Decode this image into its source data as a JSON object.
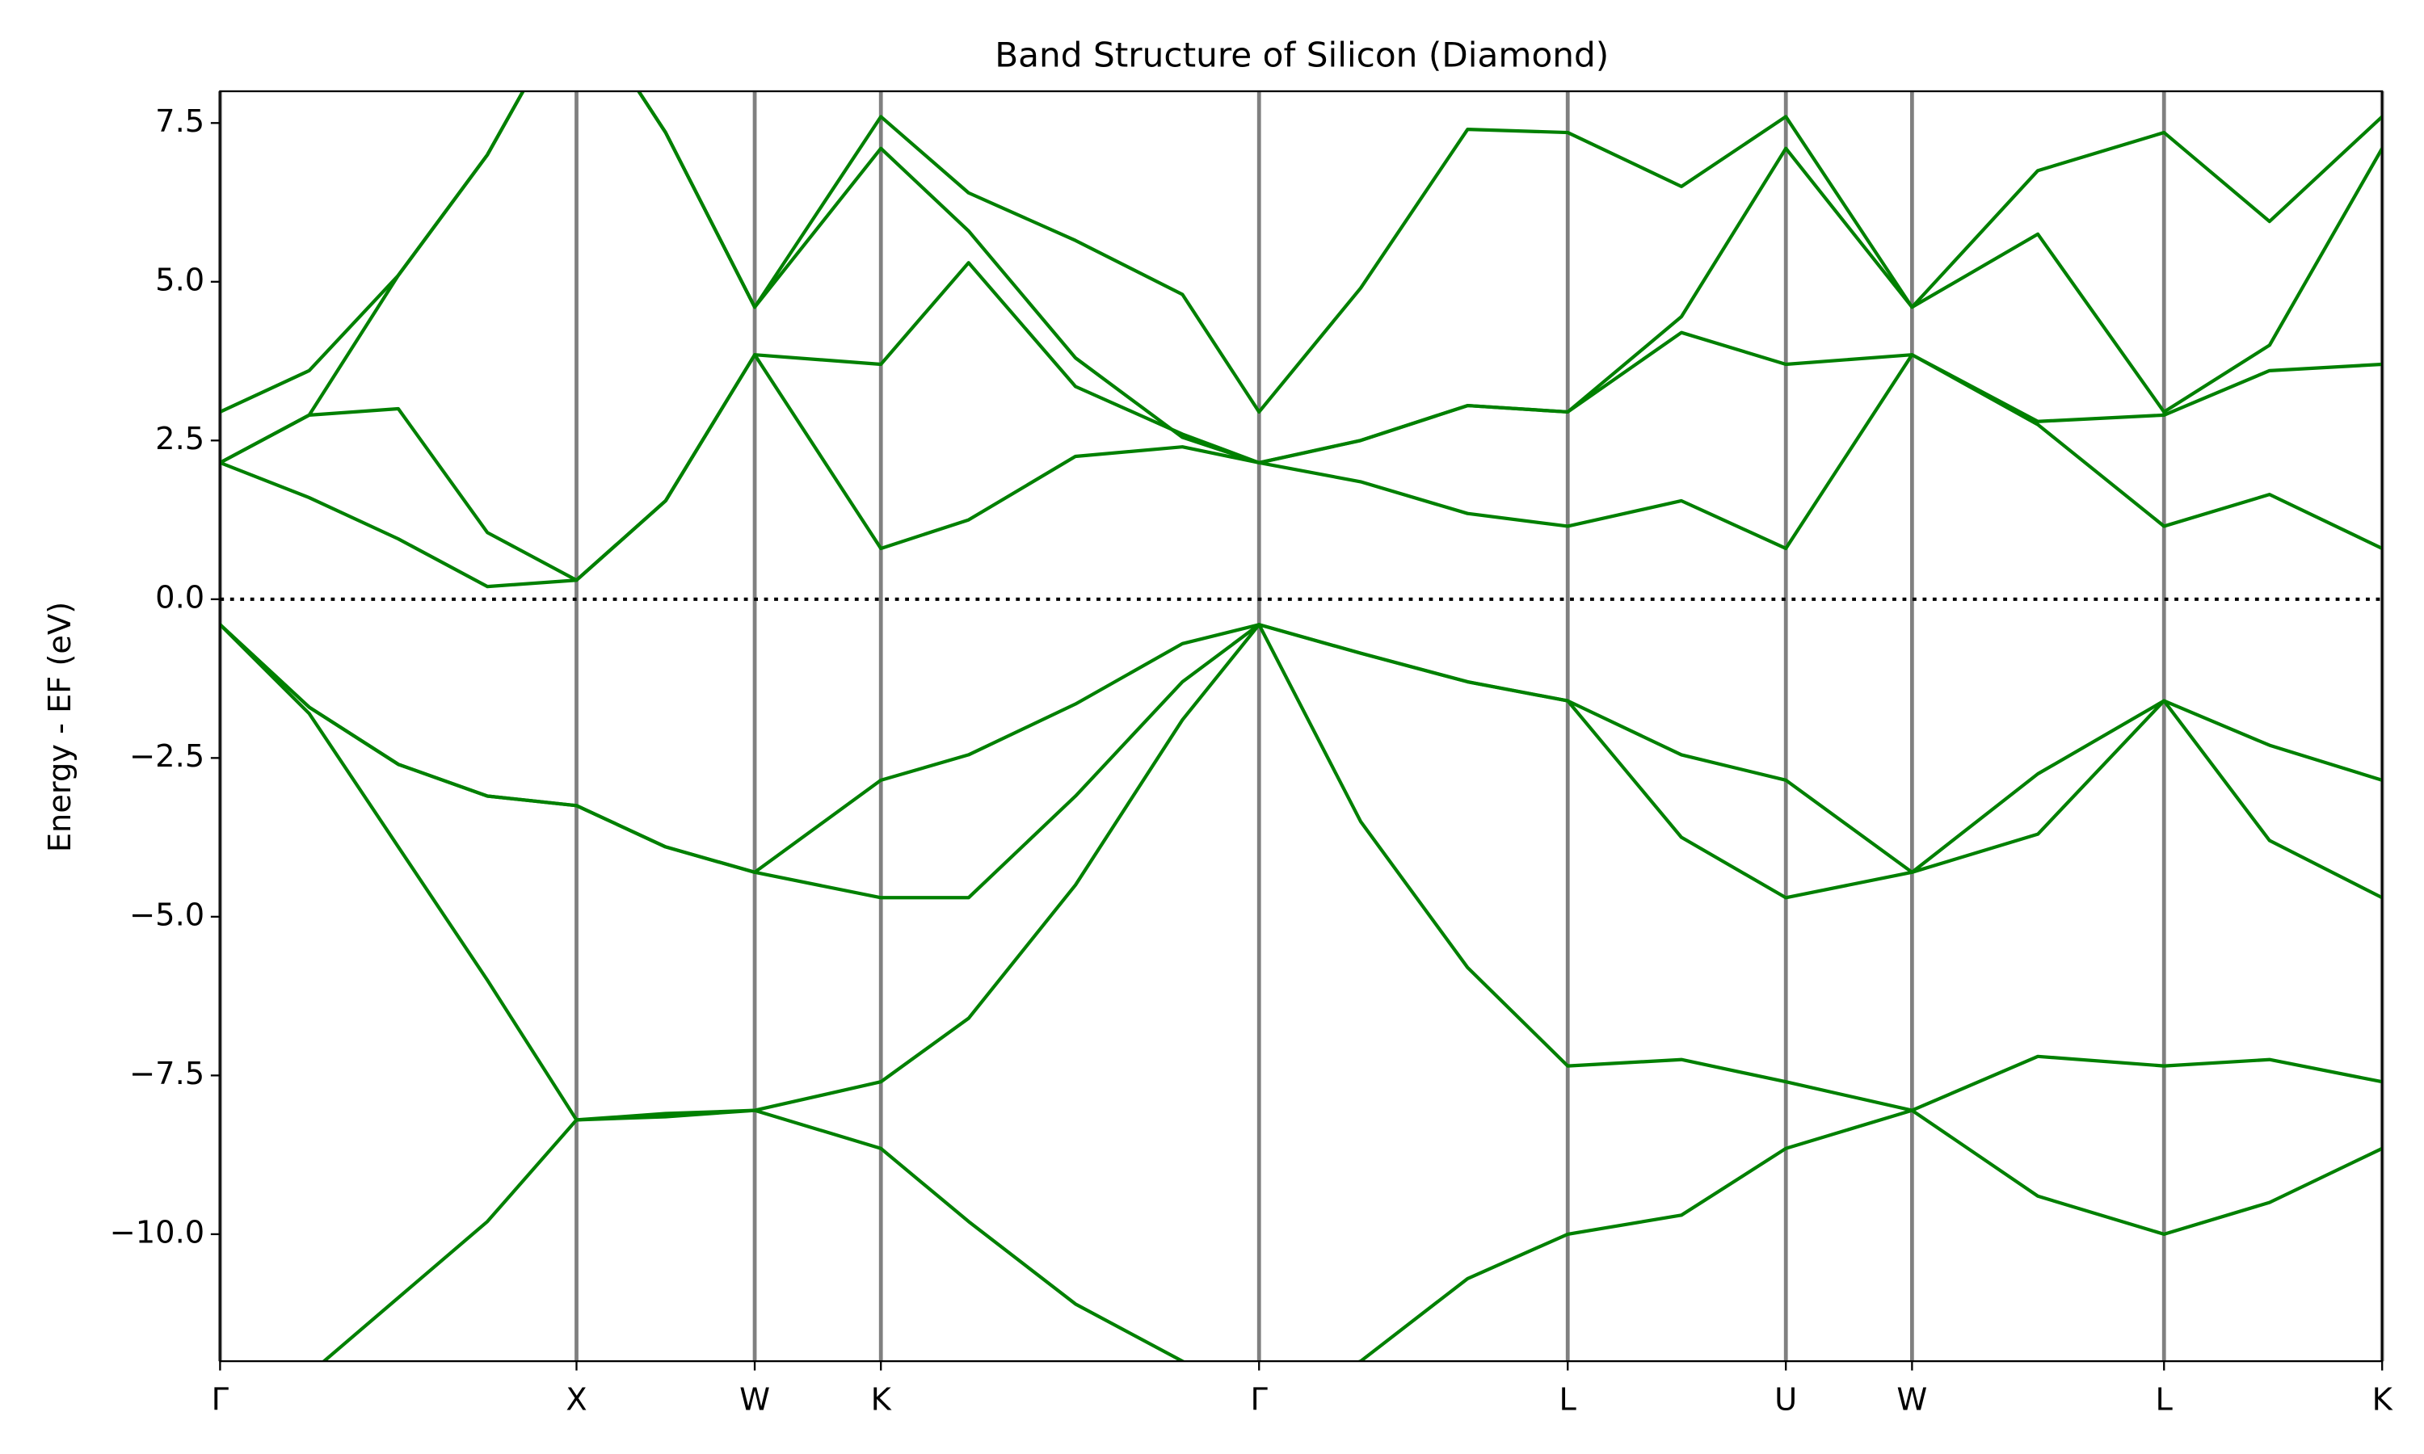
{
  "chart_data": {
    "type": "line",
    "title": "Band Structure of Silicon (Diamond)",
    "ylabel": "Energy - EF (eV)",
    "color": "#008000",
    "xgrid": true,
    "xgrid_color": "#808080",
    "hline": {
      "value": 0,
      "style": "dotted",
      "color": "#000000"
    },
    "x": [
      0,
      0.25,
      0.5,
      0.75,
      1.0,
      1.25,
      1.5,
      1.854,
      2.1,
      2.4,
      2.7,
      2.915,
      3.2,
      3.5,
      3.781,
      4.1,
      4.393,
      4.747,
      5.1,
      5.454,
      5.75,
      6.066
    ],
    "xlim": [
      0,
      6.066
    ],
    "xticks": [
      {
        "value": 0,
        "label": "Γ"
      },
      {
        "value": 1.0,
        "label": "X"
      },
      {
        "value": 1.5,
        "label": "W"
      },
      {
        "value": 1.854,
        "label": "K"
      },
      {
        "value": 2.915,
        "label": "Γ"
      },
      {
        "value": 3.781,
        "label": "L"
      },
      {
        "value": 4.393,
        "label": "U"
      },
      {
        "value": 4.747,
        "label": "W"
      },
      {
        "value": 5.454,
        "label": "L"
      },
      {
        "value": 6.066,
        "label": "K"
      }
    ],
    "ylim": [
      -12,
      8
    ],
    "yticks": [
      {
        "value": -10,
        "label": "−10.0"
      },
      {
        "value": -7.5,
        "label": "−7.5"
      },
      {
        "value": -5,
        "label": "−5.0"
      },
      {
        "value": -2.5,
        "label": "−2.5"
      },
      {
        "value": 0,
        "label": "0.0"
      },
      {
        "value": 2.5,
        "label": "2.5"
      },
      {
        "value": 5,
        "label": "5.0"
      },
      {
        "value": 7.5,
        "label": "7.5"
      }
    ],
    "series": [
      {
        "values": [
          -12.6,
          -12.2,
          -11.0,
          -9.8,
          -8.2,
          -8.15,
          -8.05,
          -8.65,
          -9.8,
          -11.1,
          -12.0,
          -12.6,
          -12.0,
          -10.7,
          -10.0,
          -9.7,
          -8.65,
          -8.05,
          -9.4,
          -10.0,
          -9.5,
          -8.65
        ]
      },
      {
        "values": [
          -0.4,
          -1.8,
          -3.9,
          -6.0,
          -8.2,
          -8.1,
          -8.05,
          -7.6,
          -6.6,
          -4.5,
          -1.9,
          -0.4,
          -3.5,
          -5.8,
          -7.35,
          -7.25,
          -7.6,
          -8.05,
          -7.2,
          -7.35,
          -7.25,
          -7.6
        ]
      },
      {
        "values": [
          -0.4,
          -1.7,
          -2.6,
          -3.1,
          -3.25,
          -3.9,
          -4.3,
          -4.7,
          -4.7,
          -3.1,
          -1.3,
          -0.4,
          -0.85,
          -1.3,
          -1.6,
          -3.75,
          -4.7,
          -4.3,
          -3.7,
          -1.6,
          -3.8,
          -4.7
        ]
      },
      {
        "values": [
          -0.4,
          -1.7,
          -2.6,
          -3.1,
          -3.25,
          -3.9,
          -4.3,
          -2.85,
          -2.45,
          -1.65,
          -0.7,
          -0.4,
          -0.85,
          -1.3,
          -1.6,
          -2.45,
          -2.85,
          -4.3,
          -2.75,
          -1.6,
          -2.3,
          -2.85
        ]
      },
      {
        "values": [
          2.15,
          1.6,
          0.95,
          0.2,
          0.3,
          1.55,
          3.85,
          0.8,
          1.25,
          2.25,
          2.4,
          2.15,
          1.85,
          1.35,
          1.15,
          1.55,
          0.8,
          3.85,
          2.75,
          1.15,
          1.65,
          0.8
        ]
      },
      {
        "values": [
          2.15,
          2.9,
          3.0,
          1.05,
          0.3,
          1.55,
          3.85,
          3.7,
          5.3,
          3.35,
          2.6,
          2.15,
          2.5,
          3.05,
          2.95,
          4.2,
          3.7,
          3.85,
          2.8,
          2.9,
          3.6,
          3.7
        ]
      },
      {
        "values": [
          2.15,
          2.9,
          5.1,
          7.0,
          9.5,
          7.35,
          4.6,
          7.1,
          5.8,
          3.8,
          2.55,
          2.15,
          2.5,
          3.05,
          2.95,
          4.45,
          7.1,
          4.6,
          5.75,
          2.95,
          4.0,
          7.1
        ]
      },
      {
        "values": [
          2.95,
          3.6,
          5.1,
          7.0,
          9.5,
          7.35,
          4.6,
          7.6,
          6.4,
          5.65,
          4.8,
          2.95,
          4.9,
          7.4,
          7.35,
          6.5,
          7.6,
          4.6,
          6.75,
          7.35,
          5.95,
          7.6
        ]
      }
    ]
  }
}
